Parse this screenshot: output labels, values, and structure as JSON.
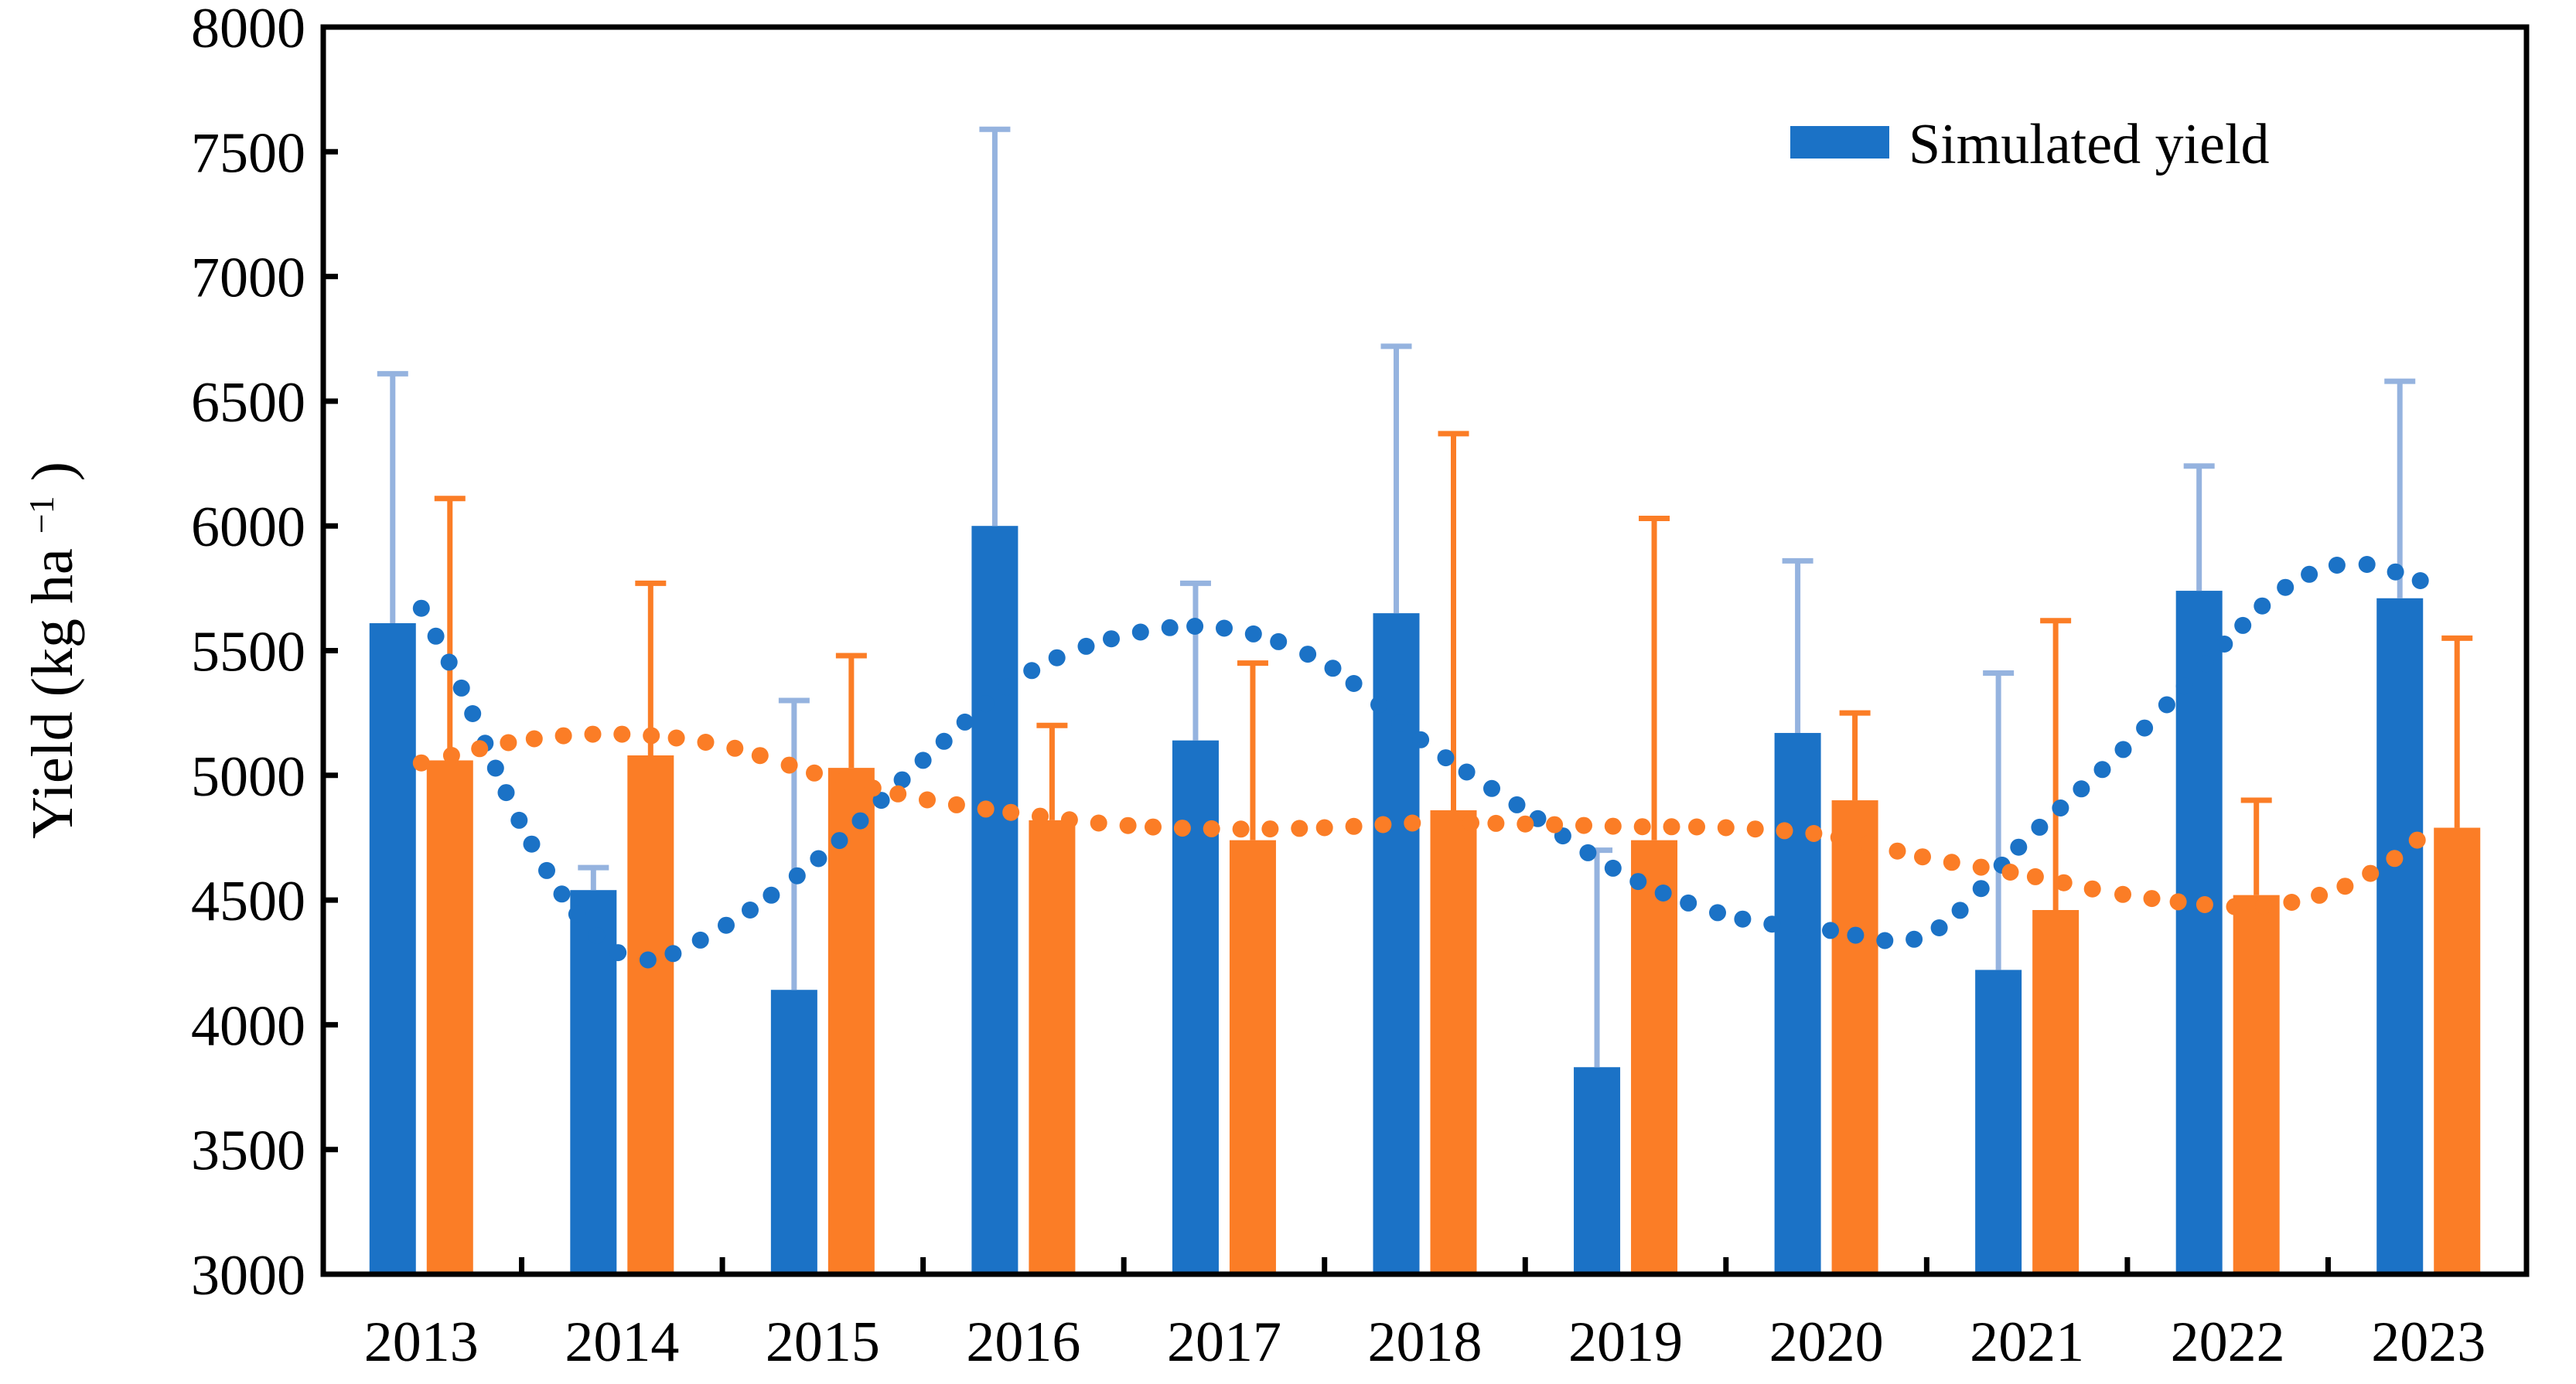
{
  "chart_data": {
    "type": "bar",
    "title": "",
    "categories": [
      "2013",
      "2014",
      "2015",
      "2016",
      "2017",
      "2018",
      "2019",
      "2020",
      "2021",
      "2022",
      "2023"
    ],
    "ylabel": {
      "prefix": "Yield (kg ha",
      "superscript": "−1",
      "suffix": ")"
    },
    "ylim": [
      3000,
      8000
    ],
    "ytick_step": 500,
    "y_ticks": [
      "3000",
      "3500",
      "4000",
      "4500",
      "5000",
      "5500",
      "6000",
      "6500",
      "7000",
      "7500",
      "8000"
    ],
    "grid": "off",
    "legend_position": "top-right-inside",
    "frame_color": "#000000",
    "series": [
      {
        "key": "simulated",
        "legend_label": "Simulated yield",
        "color": "#1B72C6",
        "error_color": "#95B3DF",
        "values": [
          5610,
          4540,
          4140,
          6000,
          5140,
          5650,
          3830,
          5170,
          4220,
          5740,
          5710
        ],
        "error_top": [
          6610,
          4630,
          5300,
          7590,
          5770,
          6720,
          4700,
          5860,
          5410,
          6240,
          6580
        ]
      },
      {
        "key": "second",
        "legend_label": null,
        "color": "#FB7D26",
        "error_color": "#FB7D26",
        "values": [
          5060,
          5080,
          5030,
          4820,
          4740,
          4860,
          4740,
          4900,
          4460,
          4520,
          4790
        ],
        "error_top": [
          6110,
          5770,
          5480,
          5200,
          5450,
          6370,
          6030,
          5250,
          5620,
          4900,
          5550
        ]
      }
    ],
    "trend_lines": [
      {
        "series": "simulated",
        "style": "dotted",
        "color": "#1B72C6",
        "points": [
          [
            0,
            5670
          ],
          [
            0.2,
            5350
          ],
          [
            0.5,
            4800
          ],
          [
            0.8,
            4420
          ],
          [
            1.1,
            4260
          ],
          [
            1.5,
            4390
          ],
          [
            2,
            4680
          ],
          [
            2.5,
            5060
          ],
          [
            3,
            5400
          ],
          [
            3.5,
            5560
          ],
          [
            4,
            5590
          ],
          [
            4.5,
            5450
          ],
          [
            5,
            5130
          ],
          [
            5.5,
            4860
          ],
          [
            6,
            4600
          ],
          [
            6.5,
            4440
          ],
          [
            7,
            4380
          ],
          [
            7.5,
            4360
          ],
          [
            8,
            4745
          ],
          [
            8.5,
            5120
          ],
          [
            9,
            5540
          ],
          [
            9.3,
            5760
          ],
          [
            9.63,
            5850
          ],
          [
            10,
            5770
          ]
        ]
      },
      {
        "series": "second",
        "style": "dotted",
        "color": "#FB7D26",
        "points": [
          [
            0,
            5050
          ],
          [
            0.5,
            5140
          ],
          [
            1,
            5165
          ],
          [
            1.5,
            5120
          ],
          [
            2,
            5000
          ],
          [
            2.5,
            4905
          ],
          [
            3,
            4845
          ],
          [
            3.5,
            4800
          ],
          [
            4,
            4785
          ],
          [
            4.5,
            4790
          ],
          [
            5,
            4810
          ],
          [
            5.5,
            4805
          ],
          [
            6,
            4795
          ],
          [
            6.5,
            4790
          ],
          [
            7,
            4760
          ],
          [
            7.5,
            4670
          ],
          [
            8,
            4600
          ],
          [
            8.5,
            4520
          ],
          [
            9.1,
            4473
          ],
          [
            9.5,
            4530
          ],
          [
            9.8,
            4650
          ],
          [
            10,
            4780
          ]
        ]
      }
    ]
  },
  "legend": {
    "items": [
      {
        "label": "Simulated yield",
        "color": "#1B72C6"
      }
    ]
  }
}
